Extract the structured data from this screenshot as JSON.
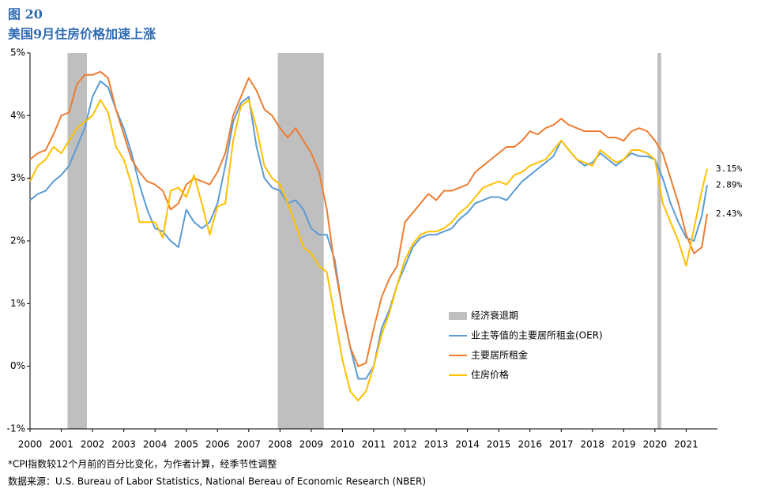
{
  "chart_data": {
    "type": "line",
    "title": "图 20",
    "subtitle": "美国9月住房价格加速上涨",
    "footnote": "*CPI指数较12个月前的百分比变化，为作者计算，经季节性调整",
    "source": "数据来源：U.S. Bureau of Labor Statistics, National Bereau of Economic Research (NBER)",
    "recession_label": "经济衰退期",
    "recession_color": "#bfbfbf",
    "recessions": [
      [
        2001.2,
        2001.82
      ],
      [
        2007.93,
        2009.4
      ],
      [
        2020.08,
        2020.2
      ]
    ],
    "xlim": [
      2000,
      2022
    ],
    "xticks": [
      2000,
      2001,
      2002,
      2003,
      2004,
      2005,
      2006,
      2007,
      2008,
      2009,
      2010,
      2011,
      2012,
      2013,
      2014,
      2015,
      2016,
      2017,
      2018,
      2019,
      2020,
      2021
    ],
    "ylim": [
      -1,
      5
    ],
    "yticks": [
      {
        "value": -1,
        "label": "-1%"
      },
      {
        "value": 0,
        "label": "0%"
      },
      {
        "value": 1,
        "label": "1%"
      },
      {
        "value": 2,
        "label": "2%"
      },
      {
        "value": 3,
        "label": "3%"
      },
      {
        "value": 4,
        "label": "4%"
      },
      {
        "value": 5,
        "label": "5%"
      }
    ],
    "x": [
      2000,
      2000.25,
      2000.5,
      2000.75,
      2001,
      2001.25,
      2001.5,
      2001.75,
      2002,
      2002.25,
      2002.5,
      2002.75,
      2003,
      2003.25,
      2003.5,
      2003.75,
      2004,
      2004.25,
      2004.5,
      2004.75,
      2005,
      2005.25,
      2005.5,
      2005.75,
      2006,
      2006.25,
      2006.5,
      2006.75,
      2007,
      2007.25,
      2007.5,
      2007.75,
      2008,
      2008.25,
      2008.5,
      2008.75,
      2009,
      2009.25,
      2009.5,
      2009.75,
      2010,
      2010.25,
      2010.5,
      2010.75,
      2011,
      2011.25,
      2011.5,
      2011.75,
      2012,
      2012.25,
      2012.5,
      2012.75,
      2013,
      2013.25,
      2013.5,
      2013.75,
      2014,
      2014.25,
      2014.5,
      2014.75,
      2015,
      2015.25,
      2015.5,
      2015.75,
      2016,
      2016.25,
      2016.5,
      2016.75,
      2017,
      2017.25,
      2017.5,
      2017.75,
      2018,
      2018.25,
      2018.5,
      2018.75,
      2019,
      2019.25,
      2019.5,
      2019.75,
      2020,
      2020.25,
      2020.5,
      2020.75,
      2021,
      2021.25,
      2021.5,
      2021.67
    ],
    "series": [
      {
        "name": "业主等值的主要居所租金(OER)",
        "color": "#5b9bd5",
        "end_label": "2.89%",
        "values": [
          2.65,
          2.75,
          2.8,
          2.95,
          3.05,
          3.2,
          3.5,
          3.8,
          4.3,
          4.55,
          4.45,
          4.1,
          3.8,
          3.4,
          2.9,
          2.5,
          2.2,
          2.15,
          2.0,
          1.9,
          2.5,
          2.3,
          2.2,
          2.3,
          2.6,
          3.2,
          3.9,
          4.2,
          4.3,
          3.5,
          3.0,
          2.85,
          2.8,
          2.6,
          2.65,
          2.5,
          2.2,
          2.1,
          2.1,
          1.7,
          0.9,
          0.3,
          -0.2,
          -0.2,
          0.0,
          0.6,
          0.9,
          1.3,
          1.6,
          1.9,
          2.05,
          2.1,
          2.1,
          2.15,
          2.2,
          2.35,
          2.45,
          2.6,
          2.65,
          2.7,
          2.7,
          2.65,
          2.8,
          2.95,
          3.05,
          3.15,
          3.25,
          3.35,
          3.6,
          3.45,
          3.3,
          3.2,
          3.25,
          3.4,
          3.3,
          3.2,
          3.3,
          3.4,
          3.35,
          3.35,
          3.3,
          3.0,
          2.6,
          2.3,
          2.05,
          2.0,
          2.4,
          2.89
        ]
      },
      {
        "name": "主要居所租金",
        "color": "#ed7d31",
        "end_label": "2.43%",
        "values": [
          3.3,
          3.4,
          3.45,
          3.7,
          4.0,
          4.05,
          4.5,
          4.65,
          4.65,
          4.7,
          4.6,
          4.1,
          3.7,
          3.3,
          3.1,
          2.95,
          2.9,
          2.8,
          2.5,
          2.6,
          2.9,
          3.0,
          2.95,
          2.9,
          3.1,
          3.4,
          4.0,
          4.3,
          4.6,
          4.4,
          4.1,
          4.0,
          3.8,
          3.65,
          3.8,
          3.6,
          3.4,
          3.1,
          2.5,
          1.6,
          0.9,
          0.3,
          0.0,
          0.05,
          0.6,
          1.1,
          1.4,
          1.6,
          2.3,
          2.45,
          2.6,
          2.75,
          2.65,
          2.8,
          2.8,
          2.85,
          2.9,
          3.1,
          3.2,
          3.3,
          3.4,
          3.5,
          3.5,
          3.6,
          3.75,
          3.7,
          3.8,
          3.85,
          3.95,
          3.85,
          3.8,
          3.75,
          3.75,
          3.75,
          3.65,
          3.65,
          3.6,
          3.75,
          3.8,
          3.75,
          3.6,
          3.4,
          3.0,
          2.6,
          2.1,
          1.8,
          1.9,
          2.43
        ]
      },
      {
        "name": "住房价格",
        "color": "#ffc000",
        "end_label": "3.15%",
        "values": [
          2.95,
          3.2,
          3.3,
          3.5,
          3.4,
          3.6,
          3.8,
          3.9,
          4.0,
          4.25,
          4.05,
          3.5,
          3.3,
          2.9,
          2.3,
          2.3,
          2.3,
          2.05,
          2.8,
          2.85,
          2.7,
          3.05,
          2.6,
          2.1,
          2.55,
          2.6,
          3.6,
          4.15,
          4.25,
          3.8,
          3.2,
          3.0,
          2.9,
          2.6,
          2.25,
          1.9,
          1.8,
          1.6,
          1.5,
          0.8,
          0.1,
          -0.4,
          -0.55,
          -0.4,
          0.0,
          0.5,
          0.85,
          1.3,
          1.7,
          1.95,
          2.1,
          2.15,
          2.15,
          2.2,
          2.3,
          2.45,
          2.55,
          2.7,
          2.85,
          2.9,
          2.95,
          2.9,
          3.05,
          3.1,
          3.2,
          3.25,
          3.3,
          3.45,
          3.6,
          3.45,
          3.3,
          3.25,
          3.2,
          3.45,
          3.35,
          3.25,
          3.3,
          3.45,
          3.45,
          3.4,
          3.3,
          2.6,
          2.3,
          2.0,
          1.6,
          2.2,
          2.8,
          3.15
        ]
      }
    ]
  }
}
